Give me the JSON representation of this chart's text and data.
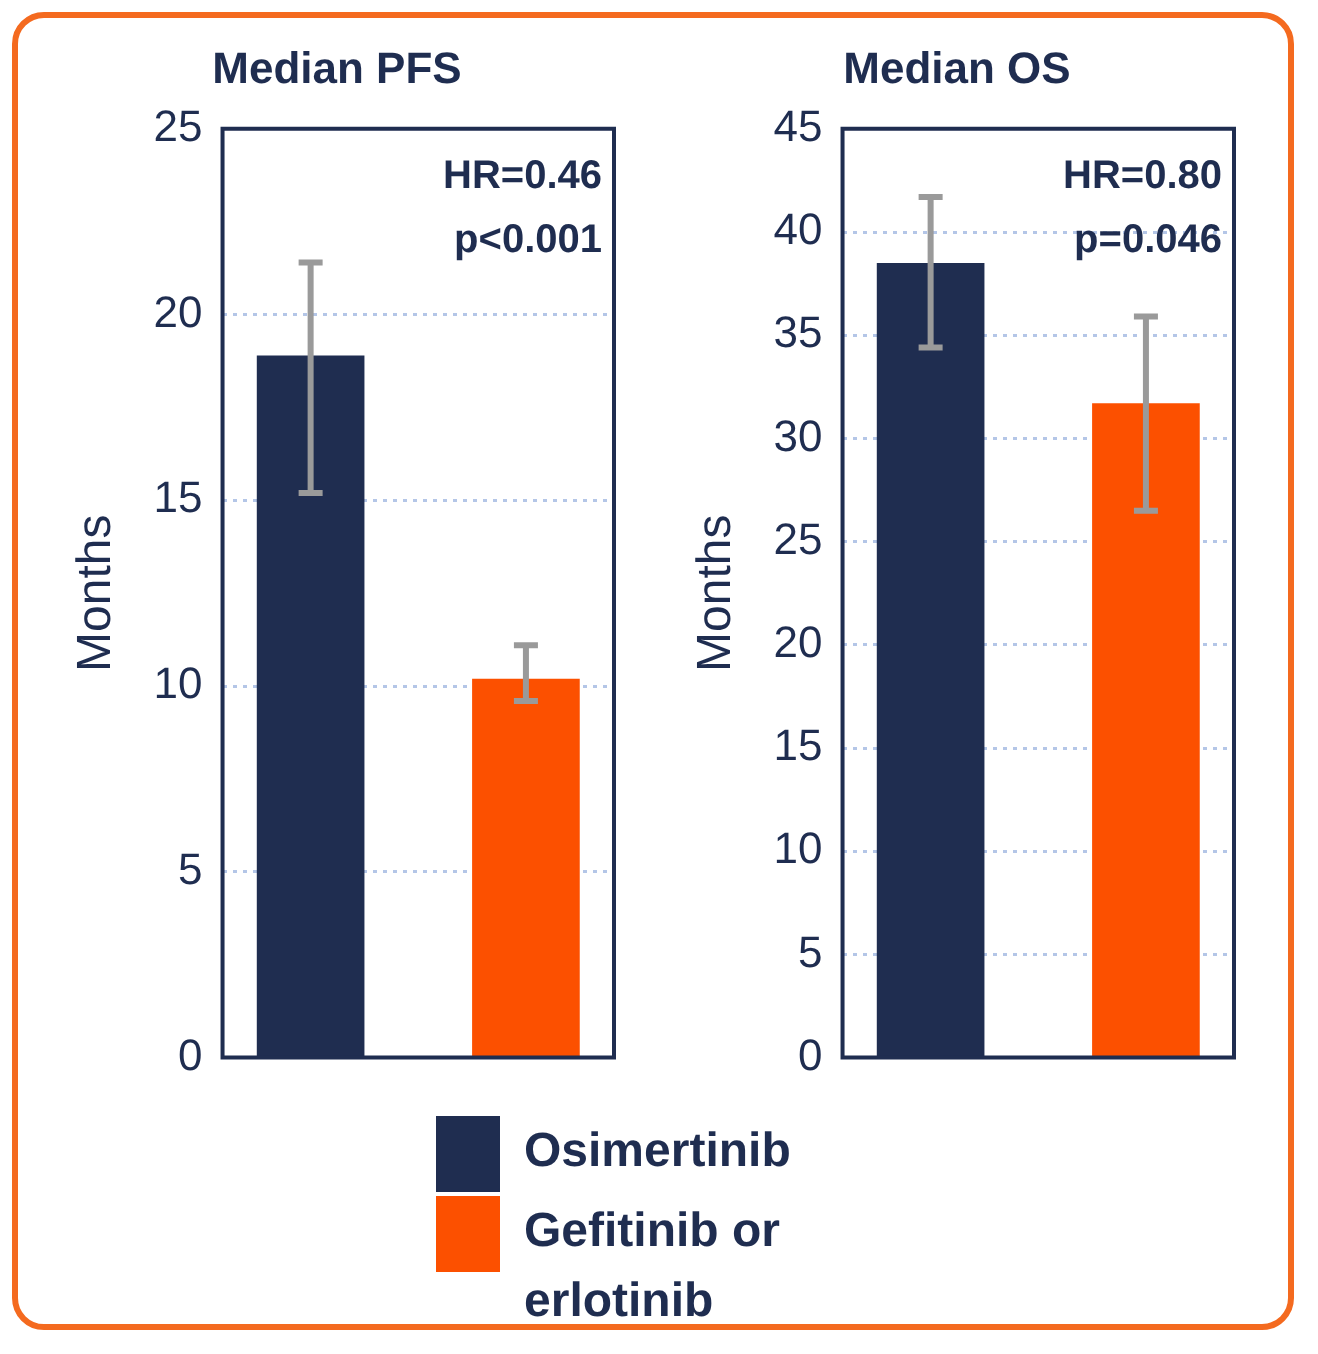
{
  "chart_data": [
    {
      "type": "bar",
      "title": "Median PFS",
      "ylabel": "Months",
      "categories": [
        null
      ],
      "ylim": [
        0,
        25
      ],
      "yticks": [
        0,
        5,
        10,
        15,
        20,
        25
      ],
      "grid": "y",
      "legend": "bottom",
      "annotations": [
        "HR=0.46",
        "p<0.001"
      ],
      "series": [
        {
          "name": "Osimertinib",
          "color": "#1f2d50",
          "values": [
            18.9
          ],
          "errors": [
            [
              15.2,
              21.4
            ]
          ]
        },
        {
          "name": "Gefitinib or erlotinib",
          "color": "#fc5000",
          "values": [
            10.2
          ],
          "errors": [
            [
              9.6,
              11.1
            ]
          ]
        }
      ]
    },
    {
      "type": "bar",
      "title": "Median OS",
      "ylabel": "Months",
      "categories": [
        null
      ],
      "ylim": [
        0,
        45
      ],
      "yticks": [
        0,
        5,
        10,
        15,
        20,
        25,
        30,
        35,
        40,
        45
      ],
      "grid": "y",
      "annotations": [
        "HR=0.80",
        "p=0.046"
      ],
      "series": [
        {
          "color": "#1f2d50",
          "values": [
            38.5
          ],
          "errors": [
            [
              34.4,
              41.7
            ]
          ]
        },
        {
          "color": "#fc5000",
          "values": [
            31.7
          ],
          "errors": [
            [
              26.5,
              35.9
            ]
          ]
        }
      ]
    }
  ]
}
